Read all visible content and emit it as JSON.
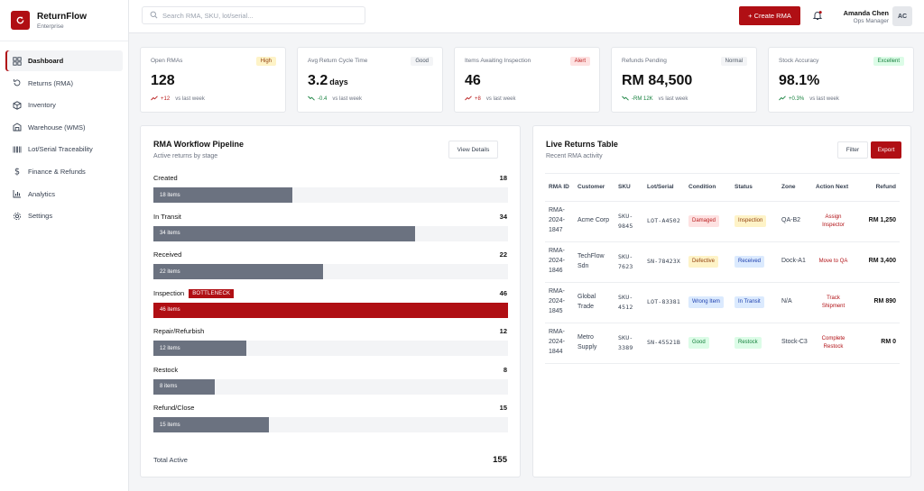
{
  "brand": {
    "name": "ReturnFlow",
    "subtitle": "Enterprise"
  },
  "nav": [
    {
      "label": "Dashboard",
      "icon": "dashboard-icon",
      "active": true
    },
    {
      "label": "Returns (RMA)",
      "icon": "returns-icon",
      "active": false
    },
    {
      "label": "Inventory",
      "icon": "inventory-icon",
      "active": false
    },
    {
      "label": "Warehouse (WMS)",
      "icon": "warehouse-icon",
      "active": false
    },
    {
      "label": "Lot/Serial Traceability",
      "icon": "barcode-icon",
      "active": false
    },
    {
      "label": "Finance & Refunds",
      "icon": "dollar-icon",
      "active": false
    },
    {
      "label": "Analytics",
      "icon": "analytics-icon",
      "active": false
    },
    {
      "label": "Settings",
      "icon": "gear-icon",
      "active": false
    }
  ],
  "topbar": {
    "search_placeholder": "Search RMA, SKU, lot/serial...",
    "create_label": "+ Create RMA",
    "user_name": "Amanda Chen",
    "user_role": "Ops Manager",
    "user_initials": "AC"
  },
  "colors": {
    "accent": "#b00f14",
    "bar": "#6b7280",
    "track": "#f3f4f6"
  },
  "kpis": [
    {
      "title": "Open RMAs",
      "badge": "High",
      "badge_bg": "#fef3c7",
      "badge_fg": "#92400e",
      "value": "128",
      "unit": "",
      "delta": "+12",
      "delta_color": "#b91c1c",
      "trend": "up",
      "compare": "vs last week"
    },
    {
      "title": "Avg Return Cycle Time",
      "badge": "Good",
      "badge_bg": "#f3f4f6",
      "badge_fg": "#4b5563",
      "value": "3.2",
      "unit": "days",
      "delta": "-0.4",
      "delta_color": "#15803d",
      "trend": "down",
      "compare": "vs last week"
    },
    {
      "title": "Items Awaiting Inspection",
      "badge": "Alert",
      "badge_bg": "#fee2e2",
      "badge_fg": "#b91c1c",
      "value": "46",
      "unit": "",
      "delta": "+8",
      "delta_color": "#b91c1c",
      "trend": "up",
      "compare": "vs last week"
    },
    {
      "title": "Refunds Pending",
      "badge": "Normal",
      "badge_bg": "#f3f4f6",
      "badge_fg": "#4b5563",
      "value": "RM 84,500",
      "unit": "",
      "delta": "-RM 12K",
      "delta_color": "#15803d",
      "trend": "down",
      "compare": "vs last week"
    },
    {
      "title": "Stock Accuracy",
      "badge": "Excellent",
      "badge_bg": "#dcfce7",
      "badge_fg": "#15803d",
      "value": "98.1%",
      "unit": "",
      "delta": "+0.3%",
      "delta_color": "#15803d",
      "trend": "up",
      "compare": "vs last week"
    }
  ],
  "pipeline": {
    "title": "RMA Workflow Pipeline",
    "subtitle": "Active returns by stage",
    "view_label": "View Details",
    "max": 46,
    "stages": [
      {
        "name": "Created",
        "count": "18",
        "value": 18,
        "bar_label": "18 items",
        "badge": ""
      },
      {
        "name": "In Transit",
        "count": "34",
        "value": 34,
        "bar_label": "34 items",
        "badge": ""
      },
      {
        "name": "Received",
        "count": "22",
        "value": 22,
        "bar_label": "22 items",
        "badge": ""
      },
      {
        "name": "Inspection",
        "count": "46",
        "value": 46,
        "bar_label": "46 items",
        "badge": "BOTTLENECK"
      },
      {
        "name": "Repair/Refurbish",
        "count": "12",
        "value": 12,
        "bar_label": "12 items",
        "badge": ""
      },
      {
        "name": "Restock",
        "count": "8",
        "value": 8,
        "bar_label": "8 items",
        "badge": ""
      },
      {
        "name": "Refund/Close",
        "count": "15",
        "value": 15,
        "bar_label": "15 items",
        "badge": ""
      }
    ],
    "total_label": "Total Active",
    "total_value": "155"
  },
  "returns": {
    "title": "Live Returns Table",
    "subtitle": "Recent RMA activity",
    "filter_label": "Filter",
    "export_label": "Export",
    "columns": [
      "RMA ID",
      "Customer",
      "SKU",
      "Lot/Serial",
      "Condition",
      "Status",
      "Zone",
      "Action Next",
      "Refund"
    ],
    "rows": [
      {
        "rma": "RMA-2024-1847",
        "customer": "Acme Corp",
        "sku": "SKU-9845",
        "lot": "LOT-A4502",
        "condition": "Damaged",
        "condition_bg": "#fee2e2",
        "condition_fg": "#b91c1c",
        "status": "Inspection",
        "status_bg": "#fef3c7",
        "status_fg": "#92400e",
        "zone": "QA-B2",
        "action": "Assign Inspector",
        "refund": "RM 1,250"
      },
      {
        "rma": "RMA-2024-1846",
        "customer": "TechFlow Sdn",
        "sku": "SKU-7623",
        "lot": "SN-78423X",
        "condition": "Defective",
        "condition_bg": "#fef3c7",
        "condition_fg": "#92400e",
        "status": "Received",
        "status_bg": "#dbeafe",
        "status_fg": "#1e40af",
        "zone": "Dock-A1",
        "action": "Move to QA",
        "refund": "RM 3,400"
      },
      {
        "rma": "RMA-2024-1845",
        "customer": "Global Trade",
        "sku": "SKU-4512",
        "lot": "LOT-83381",
        "condition": "Wrong Item",
        "condition_bg": "#dbeafe",
        "condition_fg": "#1e40af",
        "status": "In Transit",
        "status_bg": "#dbeafe",
        "status_fg": "#1e40af",
        "zone": "N/A",
        "action": "Track Shipment",
        "refund": "RM 890"
      },
      {
        "rma": "RMA-2024-1844",
        "customer": "Metro Supply",
        "sku": "SKU-3389",
        "lot": "SN-45521B",
        "condition": "Good",
        "condition_bg": "#dcfce7",
        "condition_fg": "#15803d",
        "status": "Restock",
        "status_bg": "#dcfce7",
        "status_fg": "#15803d",
        "zone": "Stock-C3",
        "action": "Complete Restock",
        "refund": "RM 0"
      }
    ]
  }
}
